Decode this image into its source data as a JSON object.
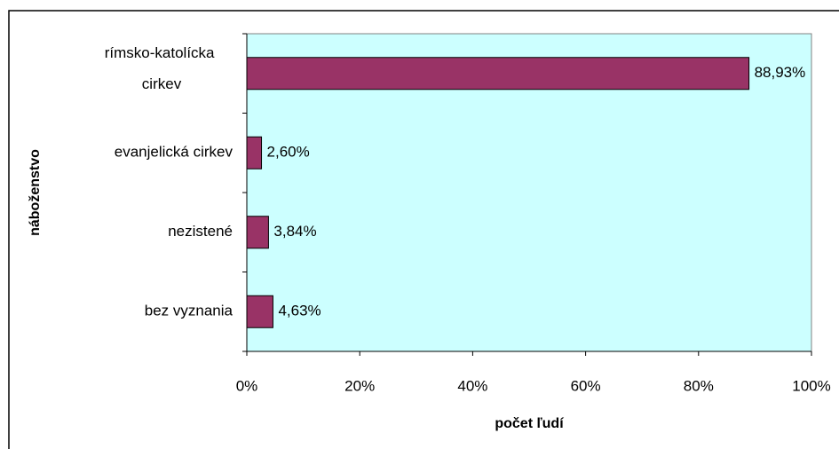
{
  "chart_data": {
    "type": "bar",
    "orientation": "horizontal",
    "categories": [
      "rímsko-katolícka cirkev",
      "evanjelická cirkev",
      "nezistené",
      "bez vyznania"
    ],
    "values": [
      88.93,
      2.6,
      3.84,
      4.63
    ],
    "value_labels": [
      "88,93%",
      "2,60%",
      "3,84%",
      "4,63%"
    ],
    "color": "#993366",
    "plot_background": "#ccffff",
    "xlim": [
      0,
      100
    ],
    "xticks": [
      {
        "value": 0,
        "label": "0%"
      },
      {
        "value": 20,
        "label": "20%"
      },
      {
        "value": 40,
        "label": "40%"
      },
      {
        "value": 60,
        "label": "60%"
      },
      {
        "value": 80,
        "label": "80%"
      },
      {
        "value": 100,
        "label": "100%"
      }
    ],
    "x_label": "počet ľudí",
    "y_label": "náboženstvo",
    "grid": false
  }
}
